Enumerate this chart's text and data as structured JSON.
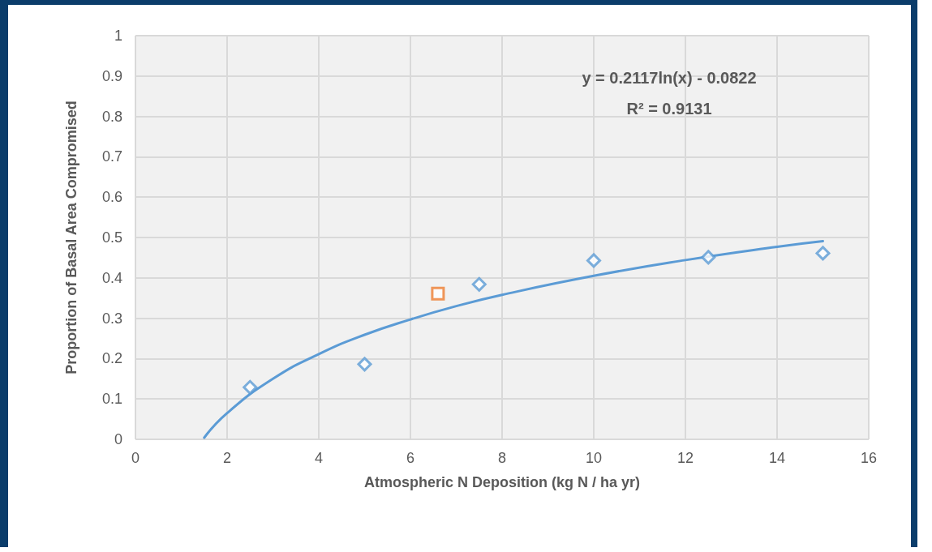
{
  "chart_data": {
    "type": "scatter",
    "xlabel": "Atmospheric N Deposition (kg N / ha yr)",
    "ylabel": "Proportion of Basal Area Compromised",
    "xlim": [
      0,
      16
    ],
    "xticks": [
      0,
      2,
      4,
      6,
      8,
      10,
      12,
      14,
      16
    ],
    "ylim": [
      0,
      1
    ],
    "yticks": [
      0,
      0.1,
      0.2,
      0.3,
      0.4,
      0.5,
      0.6,
      0.7,
      0.8,
      0.9,
      1
    ],
    "grid": true,
    "annotations": [
      "y = 0.2117ln(x) - 0.0822",
      "R² = 0.9131"
    ],
    "series": [
      {
        "marker": "diamond",
        "color": "#5b9bd5",
        "x": [
          2.5,
          5,
          7.5,
          10,
          12.5,
          15
        ],
        "values": [
          0.129,
          0.186,
          0.384,
          0.443,
          0.451,
          0.461
        ]
      },
      {
        "marker": "square",
        "color": "#ed7d31",
        "x": [
          6.6
        ],
        "values": [
          0.361
        ]
      },
      {
        "type": "line",
        "marker": "none",
        "color": "#5b9bd5",
        "x": [
          1.5,
          2,
          3,
          4,
          5,
          6,
          7,
          8,
          10,
          12,
          14,
          15
        ],
        "values": [
          0.004,
          0.065,
          0.15,
          0.211,
          0.259,
          0.297,
          0.33,
          0.358,
          0.405,
          0.444,
          0.477,
          0.491
        ]
      }
    ]
  }
}
